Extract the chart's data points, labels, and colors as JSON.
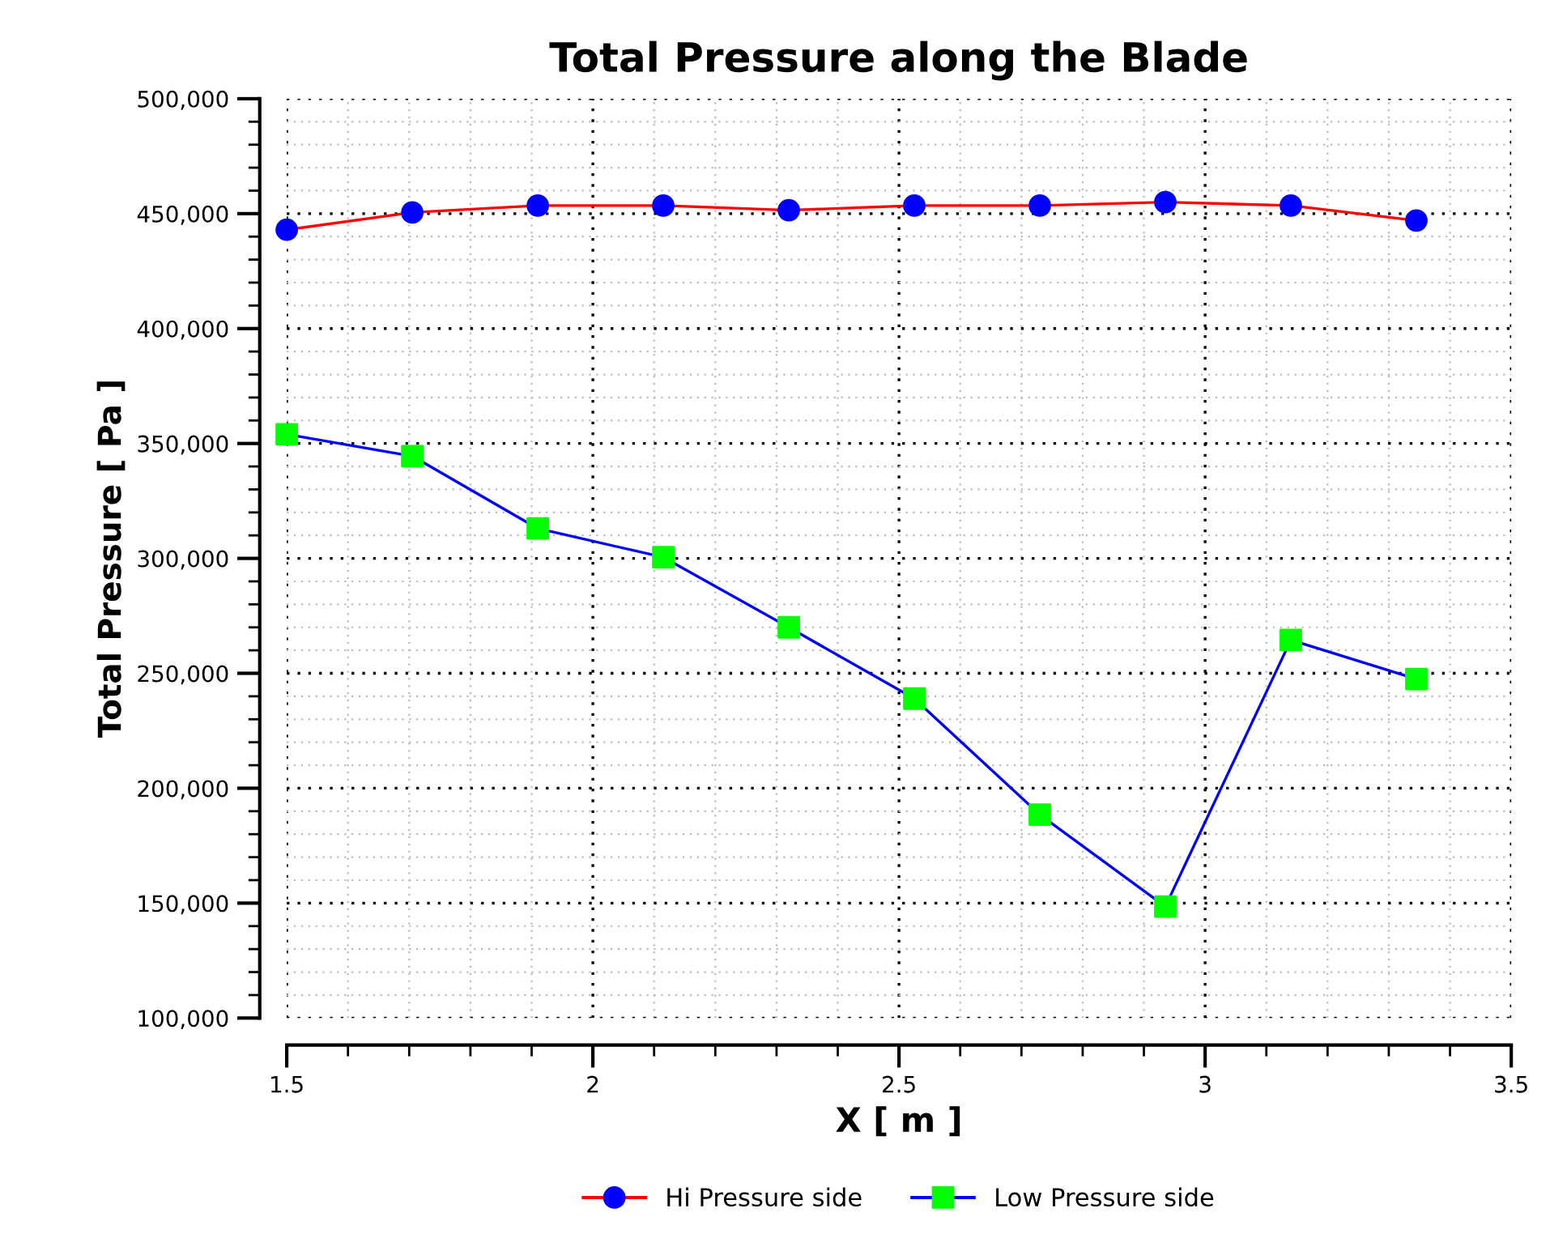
{
  "chart_data": {
    "type": "line",
    "title": "Total Pressure along the Blade",
    "xlabel": "X [ m ]",
    "ylabel": "Total Pressure [ Pa ]",
    "x": [
      1.5,
      1.705,
      1.91,
      2.115,
      2.32,
      2.525,
      2.73,
      2.935,
      3.14,
      3.345
    ],
    "series": [
      {
        "name": "Hi Pressure side",
        "color": "#ff0000",
        "colors": [
          "#0000ff",
          "#0000ff",
          "#0000ff",
          "#0000ff",
          "#0000ff",
          "#0000ff",
          "#0000ff",
          "#0000ff",
          "#0000ff",
          "#0000ff"
        ],
        "marker": "circle",
        "values": [
          443000,
          450500,
          453500,
          453500,
          451500,
          453500,
          453500,
          455000,
          453500,
          447000
        ]
      },
      {
        "name": "Low Pressure side",
        "color": "#0000ff",
        "colors": [
          "#00ff00",
          "#00ff00",
          "#00ff00",
          "#00ff00",
          "#00ff00",
          "#00ff00",
          "#00ff00",
          "#00ff00",
          "#00ff00",
          "#00ff00"
        ],
        "marker": "square",
        "values": [
          354000,
          344500,
          313000,
          300500,
          270000,
          239000,
          188500,
          148500,
          264500,
          247500
        ]
      }
    ],
    "xlim": [
      1.5,
      3.5
    ],
    "xticks": [
      1.5,
      2,
      2.5,
      3,
      3.5
    ],
    "ylim": [
      100000,
      500000
    ],
    "yticks": [
      {
        "value": 100000,
        "label": "100,000"
      },
      {
        "value": 150000,
        "label": "150,000"
      },
      {
        "value": 200000,
        "label": "200,000"
      },
      {
        "value": 250000,
        "label": "250,000"
      },
      {
        "value": 300000,
        "label": "300,000"
      },
      {
        "value": 350000,
        "label": "350,000"
      },
      {
        "value": 400000,
        "label": "400,000"
      },
      {
        "value": 450000,
        "label": "450,000"
      },
      {
        "value": 500000,
        "label": "500,000"
      }
    ],
    "grid": true,
    "legend": "bottom",
    "line_style": "solid"
  }
}
